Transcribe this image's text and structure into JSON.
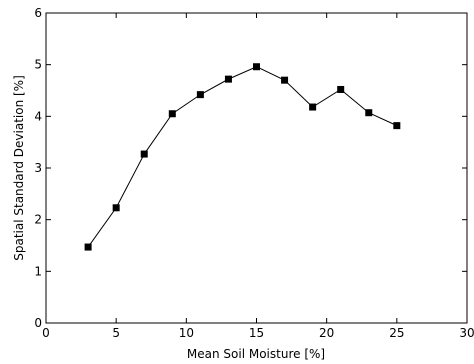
{
  "chart_data": {
    "type": "line",
    "title": "",
    "xlabel": "Mean Soil Moisture [%]",
    "ylabel": "Spatial Standard Deviation [%]",
    "xlim": [
      0,
      30
    ],
    "ylim": [
      0,
      6
    ],
    "xticks": [
      0,
      5,
      10,
      15,
      20,
      25,
      30
    ],
    "yticks": [
      0,
      1,
      2,
      3,
      4,
      5,
      6
    ],
    "grid": false,
    "legend": "none",
    "series": [
      {
        "x": [
          3,
          5,
          7,
          9,
          11,
          13,
          15,
          17,
          19,
          21,
          23,
          25
        ],
        "y": [
          1.47,
          2.23,
          3.27,
          4.05,
          4.42,
          4.72,
          4.96,
          4.7,
          4.18,
          4.52,
          4.07,
          3.82
        ],
        "marker": "square",
        "color": "#000000"
      }
    ]
  }
}
